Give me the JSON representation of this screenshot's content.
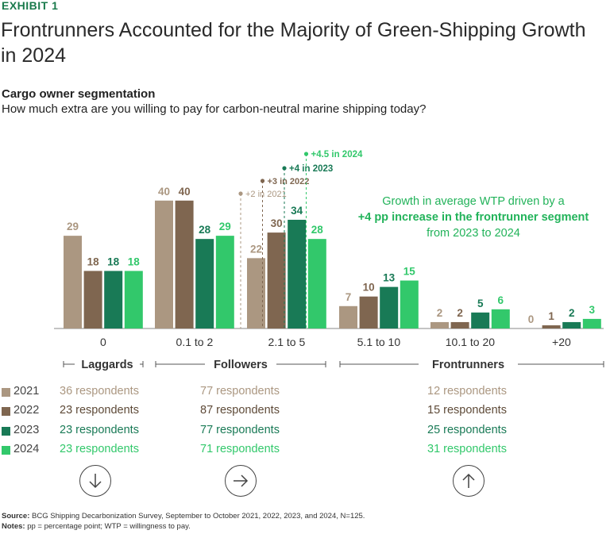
{
  "header": {
    "exhibit": "EXHIBIT 1",
    "title": "Frontrunners Accounted for the Majority of Green-Shipping Growth in 2024",
    "subtitle": "Cargo owner segmentation",
    "question": "How much extra are you willing to pay for carbon-neutral marine shipping today?"
  },
  "colors": {
    "2021": "#ab9781",
    "2022": "#7f6650",
    "2023": "#197a56",
    "2024": "#32c86b"
  },
  "chart_data": {
    "type": "bar",
    "categories": [
      "0",
      "0.1 to 2",
      "2.1 to 5",
      "5.1 to 10",
      "10.1 to 20",
      "+20"
    ],
    "series": [
      {
        "name": "2021",
        "values": [
          29,
          40,
          22,
          7,
          2,
          0
        ]
      },
      {
        "name": "2022",
        "values": [
          18,
          40,
          30,
          10,
          2,
          1
        ]
      },
      {
        "name": "2023",
        "values": [
          18,
          28,
          34,
          13,
          5,
          2
        ]
      },
      {
        "name": "2024",
        "values": [
          18,
          29,
          28,
          15,
          6,
          3
        ]
      }
    ],
    "ylim": [
      0,
      40
    ],
    "grid": false,
    "markers": [
      {
        "series": "2021",
        "label": "+2 in 2021"
      },
      {
        "series": "2022",
        "label": "+3 in 2022"
      },
      {
        "series": "2023",
        "label": "+4 in 2023"
      },
      {
        "series": "2024",
        "label": "+4.5 in 2024"
      }
    ],
    "segments": [
      "Laggards",
      "Followers",
      "Frontrunners"
    ]
  },
  "annotation": {
    "line1": "Growth in average WTP driven by a",
    "bold": "+4 pp increase in the frontrunner segment",
    "rest": " from 2023 to 2024"
  },
  "legend": [
    {
      "year": "2021",
      "laggards": "36 respondents",
      "followers": "77 respondents",
      "frontrunners": "12 respondents"
    },
    {
      "year": "2022",
      "laggards": "23 respondents",
      "followers": "87 respondents",
      "frontrunners": "15 respondents"
    },
    {
      "year": "2023",
      "laggards": "23 respondents",
      "followers": "77 respondents",
      "frontrunners": "25 respondents"
    },
    {
      "year": "2024",
      "laggards": "23 respondents",
      "followers": "71 respondents",
      "frontrunners": "31 respondents"
    }
  ],
  "trend_icons": [
    "arrow-down-icon",
    "arrow-right-icon",
    "arrow-up-icon"
  ],
  "footer": {
    "source_label": "Source:",
    "source_text": " BCG Shipping Decarbonization Survey, September to October 2021, 2022, 2023, and 2024, N=125.",
    "notes_label": "Notes:",
    "notes_text": " pp = percentage point; WTP = willingness to pay."
  }
}
